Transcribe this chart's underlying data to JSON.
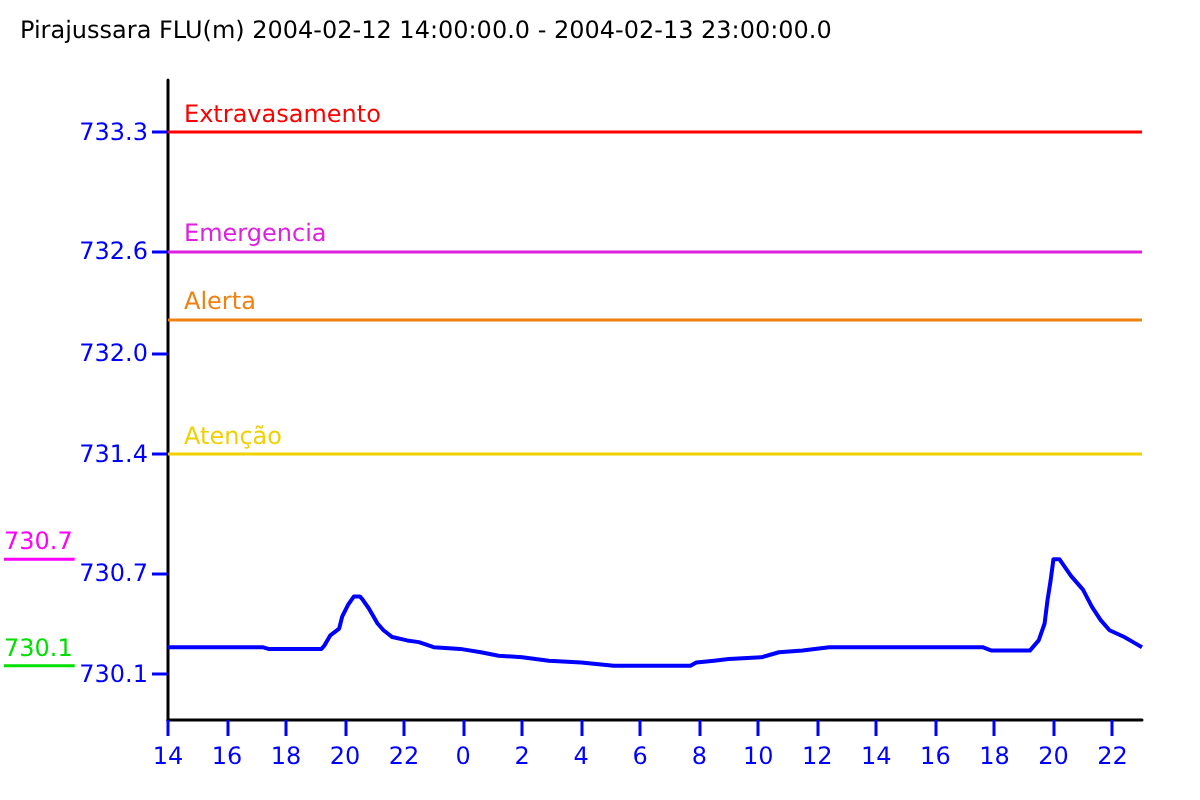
{
  "chart_data": {
    "type": "line",
    "title": "Pirajussara FLU(m) 2004-02-12 14:00:00.0 - 2004-02-13 23:00:00.0",
    "x": [
      "2004-02-12T14:00",
      "2004-02-12T17:12",
      "2004-02-12T17:24",
      "2004-02-12T19:12",
      "2004-02-12T19:18",
      "2004-02-12T19:30",
      "2004-02-12T19:48",
      "2004-02-12T19:54",
      "2004-02-12T20:06",
      "2004-02-12T20:18",
      "2004-02-12T20:30",
      "2004-02-12T20:36",
      "2004-02-12T20:48",
      "2004-02-12T21:06",
      "2004-02-12T21:18",
      "2004-02-12T21:36",
      "2004-02-12T22:06",
      "2004-02-12T22:30",
      "2004-02-12T23:00",
      "2004-02-12T23:54",
      "2004-02-13T00:36",
      "2004-02-13T01:12",
      "2004-02-13T02:00",
      "2004-02-13T02:54",
      "2004-02-13T04:00",
      "2004-02-13T05:06",
      "2004-02-13T07:42",
      "2004-02-13T07:54",
      "2004-02-13T08:30",
      "2004-02-13T09:00",
      "2004-02-13T10:06",
      "2004-02-13T10:42",
      "2004-02-13T11:30",
      "2004-02-13T12:24",
      "2004-02-13T17:36",
      "2004-02-13T17:54",
      "2004-02-13T19:12",
      "2004-02-13T19:30",
      "2004-02-13T19:42",
      "2004-02-13T19:48",
      "2004-02-13T19:54",
      "2004-02-13T20:00",
      "2004-02-13T20:12",
      "2004-02-13T20:24",
      "2004-02-13T20:36",
      "2004-02-13T21:00",
      "2004-02-13T21:18",
      "2004-02-13T21:36",
      "2004-02-13T21:54",
      "2004-02-13T22:24",
      "2004-02-13T22:42",
      "2004-02-13T23:00"
    ],
    "series": [
      {
        "color": "#0000ff",
        "values": [
          730.26,
          730.26,
          730.25,
          730.25,
          730.27,
          730.33,
          730.37,
          730.44,
          730.51,
          730.56,
          730.56,
          730.54,
          730.49,
          730.4,
          730.36,
          730.32,
          730.3,
          730.29,
          730.26,
          730.25,
          730.23,
          730.21,
          730.2,
          730.18,
          730.17,
          730.15,
          730.15,
          730.17,
          730.18,
          730.19,
          730.2,
          730.23,
          730.24,
          730.26,
          730.26,
          730.24,
          730.24,
          730.3,
          730.4,
          730.54,
          730.65,
          730.78,
          730.78,
          730.73,
          730.68,
          730.6,
          730.5,
          730.42,
          730.36,
          730.32,
          730.29,
          730.26
        ]
      }
    ],
    "xlim": [
      "2004-02-12T14:00",
      "2004-02-13T23:00"
    ],
    "xticks": [
      {
        "value": "2004-02-12T14:00",
        "label": "14"
      },
      {
        "value": "2004-02-12T16:00",
        "label": "16"
      },
      {
        "value": "2004-02-12T18:00",
        "label": "18"
      },
      {
        "value": "2004-02-12T20:00",
        "label": "20"
      },
      {
        "value": "2004-02-12T22:00",
        "label": "22"
      },
      {
        "value": "2004-02-13T00:00",
        "label": "0"
      },
      {
        "value": "2004-02-13T02:00",
        "label": "2"
      },
      {
        "value": "2004-02-13T04:00",
        "label": "4"
      },
      {
        "value": "2004-02-13T06:00",
        "label": "6"
      },
      {
        "value": "2004-02-13T08:00",
        "label": "8"
      },
      {
        "value": "2004-02-13T10:00",
        "label": "10"
      },
      {
        "value": "2004-02-13T12:00",
        "label": "12"
      },
      {
        "value": "2004-02-13T14:00",
        "label": "14"
      },
      {
        "value": "2004-02-13T16:00",
        "label": "16"
      },
      {
        "value": "2004-02-13T18:00",
        "label": "18"
      },
      {
        "value": "2004-02-13T20:00",
        "label": "20"
      },
      {
        "value": "2004-02-13T22:00",
        "label": "22"
      }
    ],
    "ylim": [
      729.83,
      733.61
    ],
    "yticks": [
      730.1,
      730.7,
      731.4,
      {
        "value": 732,
        "label": "732.0"
      },
      732.6,
      733.3
    ],
    "ref_lines": [
      {
        "axis": "y",
        "value": 733.3,
        "label": "Extravasamento",
        "color": "#ff0000"
      },
      {
        "axis": "y",
        "value": 732.6,
        "label": "Emergencia",
        "color": "#e020e0"
      },
      {
        "axis": "y",
        "value": 732.2,
        "label": "Alerta",
        "color": "#f08010"
      },
      {
        "axis": "y",
        "value": 731.4,
        "label": "Atenção",
        "color": "#f0d000"
      }
    ],
    "annotations": [
      "730.7",
      "730.1"
    ]
  }
}
